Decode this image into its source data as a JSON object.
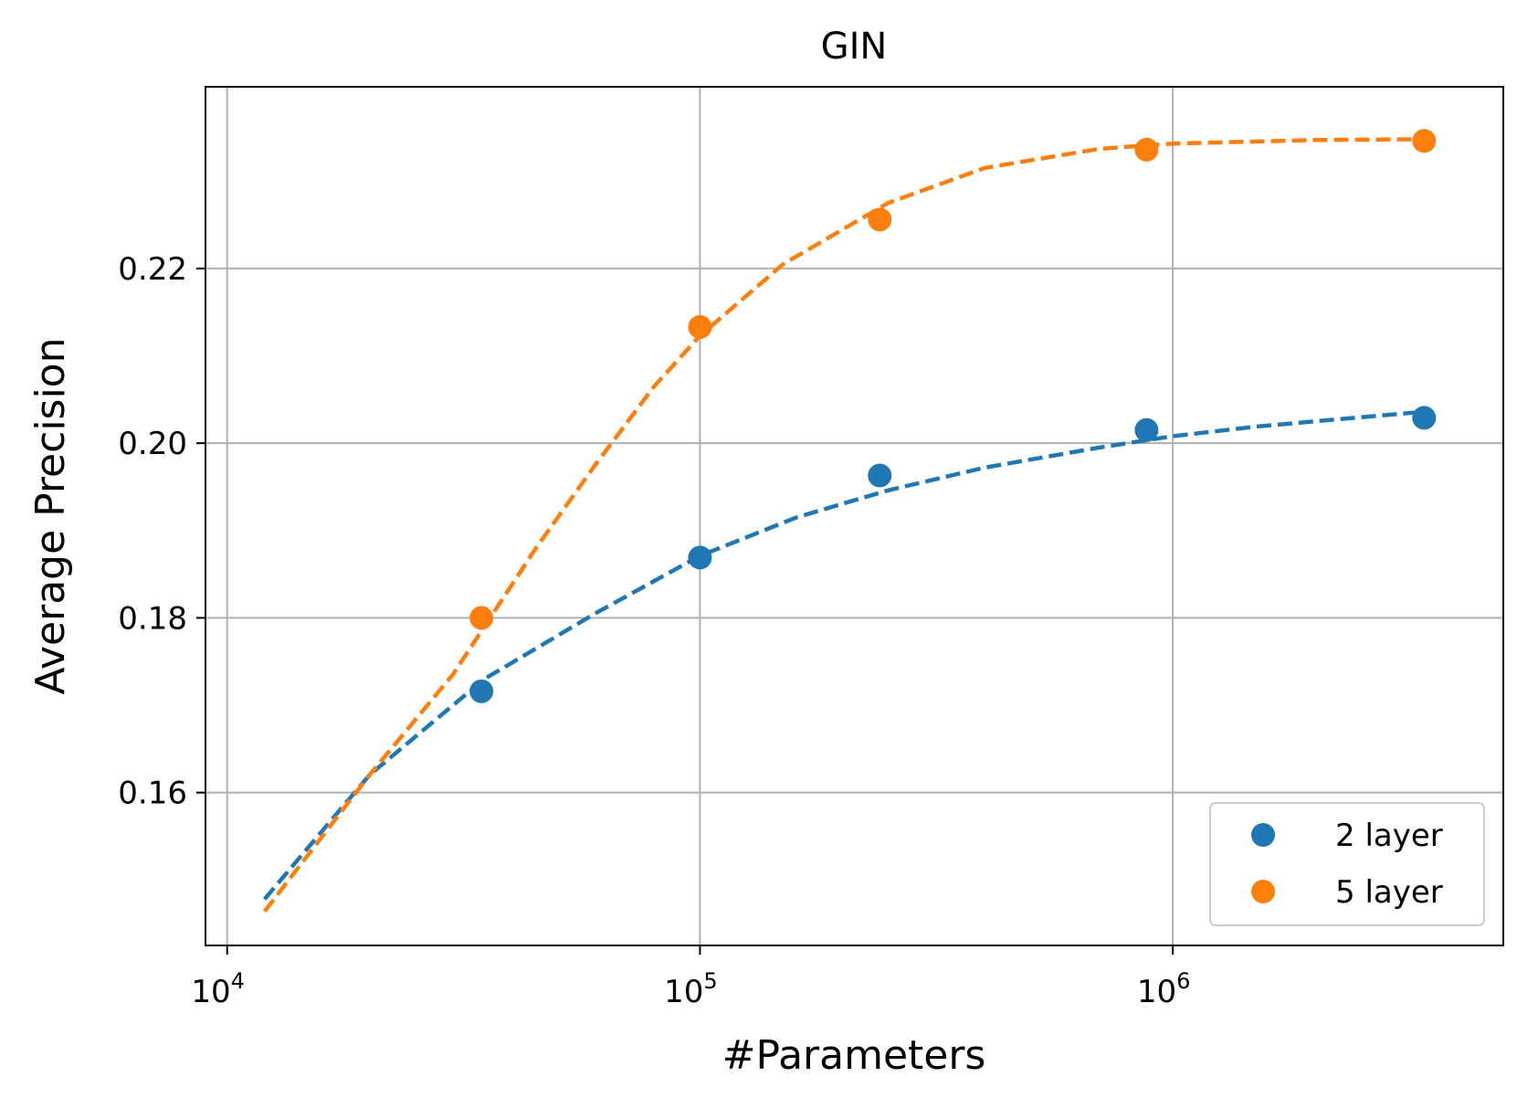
{
  "chart_data": {
    "type": "scatter",
    "title": "GIN",
    "xlabel": "#Parameters",
    "ylabel": "Average Precision",
    "xscale": "log",
    "xlim": [
      9000,
      5000000
    ],
    "ylim": [
      0.1425,
      0.2408
    ],
    "x_ticks": [
      {
        "value": 10000,
        "base": "10",
        "exp": "4"
      },
      {
        "value": 100000,
        "base": "10",
        "exp": "5"
      },
      {
        "value": 1000000,
        "base": "10",
        "exp": "6"
      }
    ],
    "y_ticks": [
      {
        "value": 0.16,
        "label": "0.16"
      },
      {
        "value": 0.18,
        "label": "0.18"
      },
      {
        "value": 0.2,
        "label": "0.20"
      },
      {
        "value": 0.22,
        "label": "0.22"
      }
    ],
    "grid": true,
    "legend_position": "bottom-right",
    "series": [
      {
        "name": "2 layer",
        "color": "#1f77b4",
        "points": [
          {
            "x": 34500,
            "y": 0.1716
          },
          {
            "x": 100000,
            "y": 0.1869
          },
          {
            "x": 240000,
            "y": 0.1963
          },
          {
            "x": 880000,
            "y": 0.2015
          },
          {
            "x": 3400000,
            "y": 0.2029
          }
        ],
        "fit": [
          {
            "x": 12000,
            "y": 0.1478
          },
          {
            "x": 20000,
            "y": 0.162
          },
          {
            "x": 35000,
            "y": 0.173
          },
          {
            "x": 60000,
            "y": 0.1805
          },
          {
            "x": 100000,
            "y": 0.1871
          },
          {
            "x": 160000,
            "y": 0.1915
          },
          {
            "x": 250000,
            "y": 0.1946
          },
          {
            "x": 400000,
            "y": 0.1972
          },
          {
            "x": 700000,
            "y": 0.1995
          },
          {
            "x": 1000000,
            "y": 0.2008
          },
          {
            "x": 1500000,
            "y": 0.2019
          },
          {
            "x": 2200000,
            "y": 0.2027
          },
          {
            "x": 3400000,
            "y": 0.2036
          }
        ]
      },
      {
        "name": "5 layer",
        "color": "#ff7f0e",
        "points": [
          {
            "x": 34500,
            "y": 0.18
          },
          {
            "x": 100000,
            "y": 0.2133
          },
          {
            "x": 240000,
            "y": 0.2256
          },
          {
            "x": 880000,
            "y": 0.2336
          },
          {
            "x": 3400000,
            "y": 0.2346
          }
        ],
        "fit": [
          {
            "x": 12000,
            "y": 0.1464
          },
          {
            "x": 20000,
            "y": 0.162
          },
          {
            "x": 30000,
            "y": 0.1735
          },
          {
            "x": 45000,
            "y": 0.188
          },
          {
            "x": 60000,
            "y": 0.1975
          },
          {
            "x": 80000,
            "y": 0.2065
          },
          {
            "x": 100000,
            "y": 0.2123
          },
          {
            "x": 150000,
            "y": 0.2205
          },
          {
            "x": 250000,
            "y": 0.2275
          },
          {
            "x": 400000,
            "y": 0.2315
          },
          {
            "x": 700000,
            "y": 0.2337
          },
          {
            "x": 1000000,
            "y": 0.2343
          },
          {
            "x": 2000000,
            "y": 0.2347
          },
          {
            "x": 3400000,
            "y": 0.2348
          }
        ]
      }
    ]
  }
}
